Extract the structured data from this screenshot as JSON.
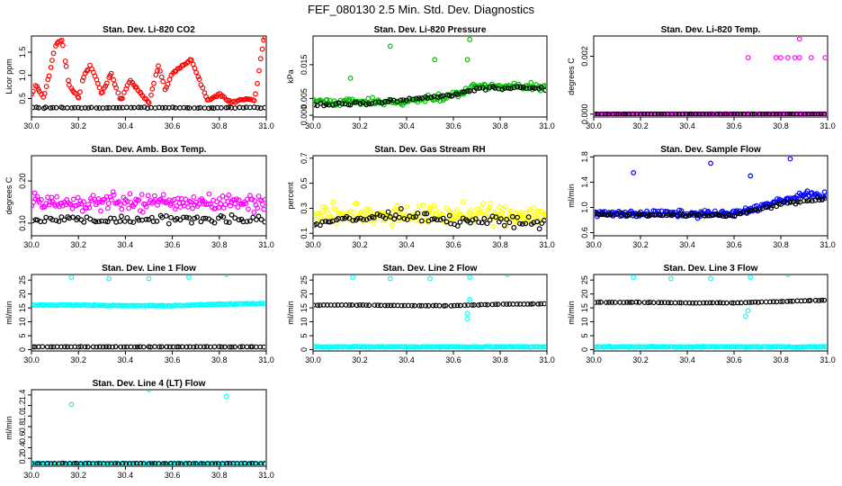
{
  "figure_title": "FEF_080130  2.5 Min. Std. Dev. Diagnostics",
  "chart_data": [
    {
      "type": "scatter",
      "title": "Stan. Dev. Li-820 CO2",
      "ylabel": "Licor ppm",
      "xlim": [
        30.0,
        31.0
      ],
      "ylim": [
        0.1,
        1.85
      ],
      "xticks": [
        "30.0",
        "30.2",
        "30.4",
        "30.6",
        "30.8",
        "31.0"
      ],
      "yticks": [
        "0.5",
        "1.0",
        "1.5"
      ],
      "series": [
        {
          "name": "black",
          "color": "#000000",
          "x": [
            30.0,
            30.2,
            30.4,
            30.6,
            30.8,
            31.0
          ],
          "y": [
            0.3,
            0.3,
            0.3,
            0.3,
            0.3,
            0.3
          ]
        },
        {
          "name": "red",
          "color": "#ff0000",
          "x": [
            30.0,
            30.02,
            30.05,
            30.08,
            30.1,
            30.13,
            30.16,
            30.2,
            30.22,
            30.25,
            30.3,
            30.34,
            30.38,
            30.42,
            30.46,
            30.5,
            30.54,
            30.57,
            30.6,
            30.68,
            30.75,
            30.8,
            30.85,
            30.9,
            30.95,
            30.99
          ],
          "y": [
            0.6,
            0.8,
            0.5,
            1.1,
            1.65,
            1.75,
            0.8,
            0.5,
            0.95,
            1.25,
            0.6,
            1.05,
            0.45,
            0.9,
            0.65,
            0.4,
            1.2,
            0.7,
            1.05,
            1.35,
            0.45,
            0.6,
            0.4,
            0.5,
            0.45,
            1.8
          ]
        }
      ]
    },
    {
      "type": "scatter",
      "title": "Stan. Dev. Li-820 Pressure",
      "ylabel": "kPa",
      "xlim": [
        30.0,
        31.0
      ],
      "ylim": [
        -0.0005,
        0.0235
      ],
      "xticks": [
        "30.0",
        "30.2",
        "30.4",
        "30.6",
        "30.8",
        "31.0"
      ],
      "yticks": [
        "0.000",
        "0.005",
        "0.015"
      ],
      "series": [
        {
          "name": "green",
          "color": "#00c000",
          "x": [
            30.0,
            30.2,
            30.4,
            30.5,
            30.55,
            30.65,
            30.7,
            30.8,
            30.9,
            31.0
          ],
          "y": [
            0.004,
            0.004,
            0.004,
            0.005,
            0.005,
            0.007,
            0.0085,
            0.0085,
            0.0085,
            0.0085
          ]
        },
        {
          "name": "black",
          "color": "#000000",
          "x": [
            30.0,
            30.3,
            30.6,
            30.7,
            30.8,
            31.0
          ],
          "y": [
            0.003,
            0.004,
            0.006,
            0.008,
            0.008,
            0.008
          ]
        }
      ],
      "outliers": [
        {
          "x": 30.33,
          "y": 0.0205
        },
        {
          "x": 30.52,
          "y": 0.0165
        },
        {
          "x": 30.66,
          "y": 0.0165
        },
        {
          "x": 30.67,
          "y": 0.0225
        },
        {
          "x": 30.16,
          "y": 0.011
        }
      ]
    },
    {
      "type": "scatter",
      "title": "Stan. Dev. Li-820 Temp.",
      "ylabel": "degrees C",
      "xlim": [
        30.0,
        31.0
      ],
      "ylim": [
        -0.0001,
        0.0027
      ],
      "xticks": [
        "30.0",
        "30.2",
        "30.4",
        "30.6",
        "30.8",
        "31.0"
      ],
      "yticks": [
        "0.000",
        "0.002"
      ],
      "series": [
        {
          "name": "magenta",
          "color": "#ff00ff",
          "x": [
            30.0,
            30.5,
            31.0
          ],
          "y": [
            0.0,
            0.0,
            0.0
          ]
        },
        {
          "name": "black",
          "color": "#000000",
          "x": [
            30.0,
            30.5,
            31.0
          ],
          "y": [
            0.0,
            0.0,
            0.0
          ]
        }
      ],
      "outliers": [
        {
          "x": 30.66,
          "y": 0.00195
        },
        {
          "x": 30.78,
          "y": 0.00195
        },
        {
          "x": 30.8,
          "y": 0.00195
        },
        {
          "x": 30.83,
          "y": 0.00195
        },
        {
          "x": 30.86,
          "y": 0.00195
        },
        {
          "x": 30.88,
          "y": 0.00195
        },
        {
          "x": 30.93,
          "y": 0.00195
        },
        {
          "x": 30.99,
          "y": 0.00195
        },
        {
          "x": 30.88,
          "y": 0.0026
        }
      ]
    },
    {
      "type": "scatter",
      "title": "Stan. Dev. Amb. Box Temp.",
      "ylabel": "degrees C",
      "xlim": [
        30.0,
        31.0
      ],
      "ylim": [
        0.07,
        0.26
      ],
      "xticks": [
        "30.0",
        "30.2",
        "30.4",
        "30.6",
        "30.8",
        "31.0"
      ],
      "yticks": [
        "0.10",
        "0.20"
      ],
      "series": [
        {
          "name": "magenta",
          "color": "#ff00ff",
          "x": [
            30.0,
            30.2,
            30.4,
            30.6,
            30.8,
            31.0
          ],
          "y": [
            0.15,
            0.15,
            0.15,
            0.15,
            0.15,
            0.15
          ]
        },
        {
          "name": "black",
          "color": "#000000",
          "x": [
            30.0,
            30.2,
            30.4,
            30.6,
            30.8,
            31.0
          ],
          "y": [
            0.11,
            0.11,
            0.11,
            0.11,
            0.11,
            0.11
          ]
        }
      ]
    },
    {
      "type": "scatter",
      "title": "Stan. Dev. Gas Stream RH",
      "ylabel": "percent",
      "xlim": [
        30.0,
        31.0
      ],
      "ylim": [
        0.08,
        0.72
      ],
      "xticks": [
        "30.0",
        "30.2",
        "30.4",
        "30.6",
        "30.8",
        "31.0"
      ],
      "yticks": [
        "0.1",
        "0.3",
        "0.5",
        "0.7"
      ],
      "series": [
        {
          "name": "yellow",
          "color": "#ffff00",
          "x": [
            30.0,
            30.2,
            30.4,
            30.6,
            30.8,
            31.0
          ],
          "y": [
            0.25,
            0.25,
            0.25,
            0.25,
            0.25,
            0.25
          ]
        },
        {
          "name": "black",
          "color": "#000000",
          "x": [
            30.0,
            30.2,
            30.4,
            30.6,
            30.8,
            31.0
          ],
          "y": [
            0.18,
            0.22,
            0.25,
            0.2,
            0.2,
            0.18
          ]
        }
      ]
    },
    {
      "type": "scatter",
      "title": "Stan. Dev. Sample Flow",
      "ylabel": "ml/min",
      "xlim": [
        30.0,
        31.0
      ],
      "ylim": [
        0.55,
        1.82
      ],
      "xticks": [
        "30.0",
        "30.2",
        "30.4",
        "30.6",
        "30.8",
        "31.0"
      ],
      "yticks": [
        "0.6",
        "1.0",
        "1.4",
        "1.8"
      ],
      "series": [
        {
          "name": "blue",
          "color": "#0000ff",
          "x": [
            30.0,
            30.2,
            30.4,
            30.6,
            30.7,
            30.8,
            30.9,
            31.0
          ],
          "y": [
            0.9,
            0.9,
            0.9,
            0.9,
            1.0,
            1.1,
            1.2,
            1.2
          ]
        },
        {
          "name": "black",
          "color": "#000000",
          "x": [
            30.0,
            30.2,
            30.4,
            30.6,
            30.8,
            31.0
          ],
          "y": [
            0.88,
            0.88,
            0.88,
            0.88,
            1.05,
            1.15
          ]
        }
      ],
      "outliers": [
        {
          "x": 30.17,
          "y": 1.55
        },
        {
          "x": 30.5,
          "y": 1.7
        },
        {
          "x": 30.67,
          "y": 1.5
        },
        {
          "x": 30.84,
          "y": 1.77
        }
      ]
    },
    {
      "type": "scatter",
      "title": "Stan. Dev. Line 1 Flow",
      "ylabel": "ml/min",
      "xlim": [
        30.0,
        31.0
      ],
      "ylim": [
        -0.5,
        27
      ],
      "xticks": [
        "30.0",
        "30.2",
        "30.4",
        "30.6",
        "30.8",
        "31.0"
      ],
      "yticks": [
        "0",
        "5",
        "10",
        "15",
        "20",
        "25"
      ],
      "series": [
        {
          "name": "cyan",
          "color": "#00ffff",
          "x": [
            30.0,
            30.2,
            30.4,
            30.6,
            30.8,
            31.0
          ],
          "y": [
            16,
            16,
            15.8,
            15.8,
            16.3,
            16.5
          ]
        },
        {
          "name": "black",
          "color": "#000000",
          "x": [
            30.0,
            30.5,
            31.0
          ],
          "y": [
            1,
            1,
            1
          ]
        }
      ],
      "outliers": [
        {
          "x": 30.17,
          "y": 26
        },
        {
          "x": 30.33,
          "y": 25.5
        },
        {
          "x": 30.5,
          "y": 25.5
        },
        {
          "x": 30.67,
          "y": 26
        },
        {
          "x": 30.83,
          "y": 27
        }
      ]
    },
    {
      "type": "scatter",
      "title": "Stan. Dev. Line 2 Flow",
      "ylabel": "ml/min",
      "xlim": [
        30.0,
        31.0
      ],
      "ylim": [
        -0.5,
        27
      ],
      "xticks": [
        "30.0",
        "30.2",
        "30.4",
        "30.6",
        "30.8",
        "31.0"
      ],
      "yticks": [
        "0",
        "5",
        "10",
        "15",
        "20",
        "25"
      ],
      "series": [
        {
          "name": "cyan",
          "color": "#00ffff",
          "x": [
            30.0,
            30.5,
            31.0
          ],
          "y": [
            1,
            1,
            1
          ]
        },
        {
          "name": "black",
          "color": "#000000",
          "x": [
            30.0,
            30.2,
            30.4,
            30.6,
            30.8,
            31.0
          ],
          "y": [
            16,
            16,
            15.8,
            15.8,
            16.3,
            16.5
          ]
        }
      ],
      "outliers": [
        {
          "x": 30.17,
          "y": 26
        },
        {
          "x": 30.33,
          "y": 25.5
        },
        {
          "x": 30.5,
          "y": 25.5
        },
        {
          "x": 30.67,
          "y": 26
        },
        {
          "x": 30.83,
          "y": 27
        },
        {
          "x": 30.66,
          "y": 11
        },
        {
          "x": 30.66,
          "y": 13
        },
        {
          "x": 30.67,
          "y": 18
        }
      ]
    },
    {
      "type": "scatter",
      "title": "Stan. Dev. Line 3 Flow",
      "ylabel": "ml/min",
      "xlim": [
        30.0,
        31.0
      ],
      "ylim": [
        -0.5,
        27
      ],
      "xticks": [
        "30.0",
        "30.2",
        "30.4",
        "30.6",
        "30.8",
        "31.0"
      ],
      "yticks": [
        "0",
        "5",
        "10",
        "15",
        "20",
        "25"
      ],
      "series": [
        {
          "name": "cyan",
          "color": "#00ffff",
          "x": [
            30.0,
            30.5,
            31.0
          ],
          "y": [
            1,
            1,
            1
          ]
        },
        {
          "name": "black",
          "color": "#000000",
          "x": [
            30.0,
            30.2,
            30.4,
            30.6,
            30.8,
            31.0
          ],
          "y": [
            17,
            17,
            16.8,
            16.8,
            17.3,
            17.8
          ]
        }
      ],
      "outliers": [
        {
          "x": 30.17,
          "y": 26
        },
        {
          "x": 30.33,
          "y": 25.5
        },
        {
          "x": 30.5,
          "y": 25.5
        },
        {
          "x": 30.67,
          "y": 26
        },
        {
          "x": 30.83,
          "y": 27
        },
        {
          "x": 30.65,
          "y": 12
        },
        {
          "x": 30.66,
          "y": 14
        }
      ]
    },
    {
      "type": "scatter",
      "title": "Stan. Dev. Line 4 (LT) Flow",
      "ylabel": "ml/min",
      "xlim": [
        30.0,
        31.0
      ],
      "ylim": [
        0.05,
        1.5
      ],
      "xticks": [
        "30.0",
        "30.2",
        "30.4",
        "30.6",
        "30.8",
        "31.0"
      ],
      "yticks": [
        "0.2",
        "0.4",
        "0.6",
        "0.8",
        "1.0",
        "1.2",
        "1.4"
      ],
      "series": [
        {
          "name": "cyan",
          "color": "#00ffff",
          "x": [
            30.0,
            30.5,
            31.0
          ],
          "y": [
            0.1,
            0.1,
            0.1
          ]
        },
        {
          "name": "black",
          "color": "#000000",
          "x": [
            30.0,
            30.5,
            31.0
          ],
          "y": [
            0.1,
            0.1,
            0.1
          ]
        }
      ],
      "outliers": [
        {
          "x": 30.17,
          "y": 1.22
        },
        {
          "x": 30.5,
          "y": 1.5
        },
        {
          "x": 30.83,
          "y": 1.37
        }
      ]
    }
  ]
}
